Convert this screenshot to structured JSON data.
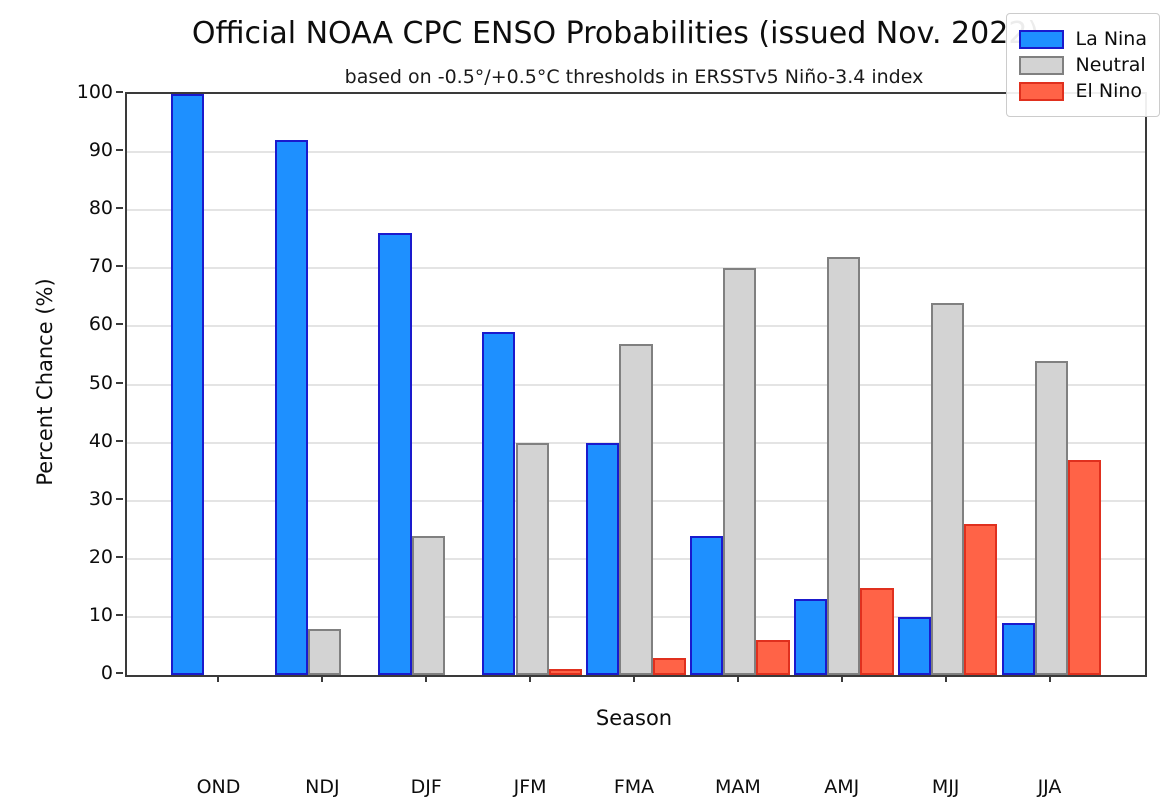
{
  "figure": {
    "title": "Official NOAA CPC ENSO Probabilities (issued Nov. 2022)",
    "subtitle": "based on -0.5°/+0.5°C thresholds in ERSSTv5 Niño-3.4 index"
  },
  "chart_data": {
    "type": "bar",
    "title": "Official NOAA CPC ENSO Probabilities (issued Nov. 2022)",
    "subtitle": "based on -0.5°/+0.5°C thresholds in ERSSTv5 Niño-3.4 index",
    "xlabel": "Season",
    "ylabel": "Percent Chance (%)",
    "categories": [
      "OND",
      "NDJ",
      "DJF",
      "JFM",
      "FMA",
      "MAM",
      "AMJ",
      "MJJ",
      "JJA"
    ],
    "series": [
      {
        "name": "La Nina",
        "fill": "#1E90FF",
        "edge": "#1A1ACD",
        "values": [
          100,
          92,
          76,
          59,
          40,
          24,
          13,
          10,
          9
        ]
      },
      {
        "name": "Neutral",
        "fill": "#D3D3D3",
        "edge": "#808080",
        "values": [
          0,
          8,
          24,
          40,
          57,
          70,
          72,
          64,
          54
        ]
      },
      {
        "name": "El Nino",
        "fill": "#FF6347",
        "edge": "#E0301E",
        "values": [
          0,
          0,
          0,
          1,
          3,
          6,
          15,
          26,
          37
        ]
      }
    ],
    "ylim": [
      0,
      100
    ],
    "ytick_step": 10,
    "grid": true,
    "legend_position": "upper right",
    "colors": {
      "grid": "#e4e4e4",
      "spine": "#3a3a3a",
      "background": "#ffffff"
    }
  }
}
